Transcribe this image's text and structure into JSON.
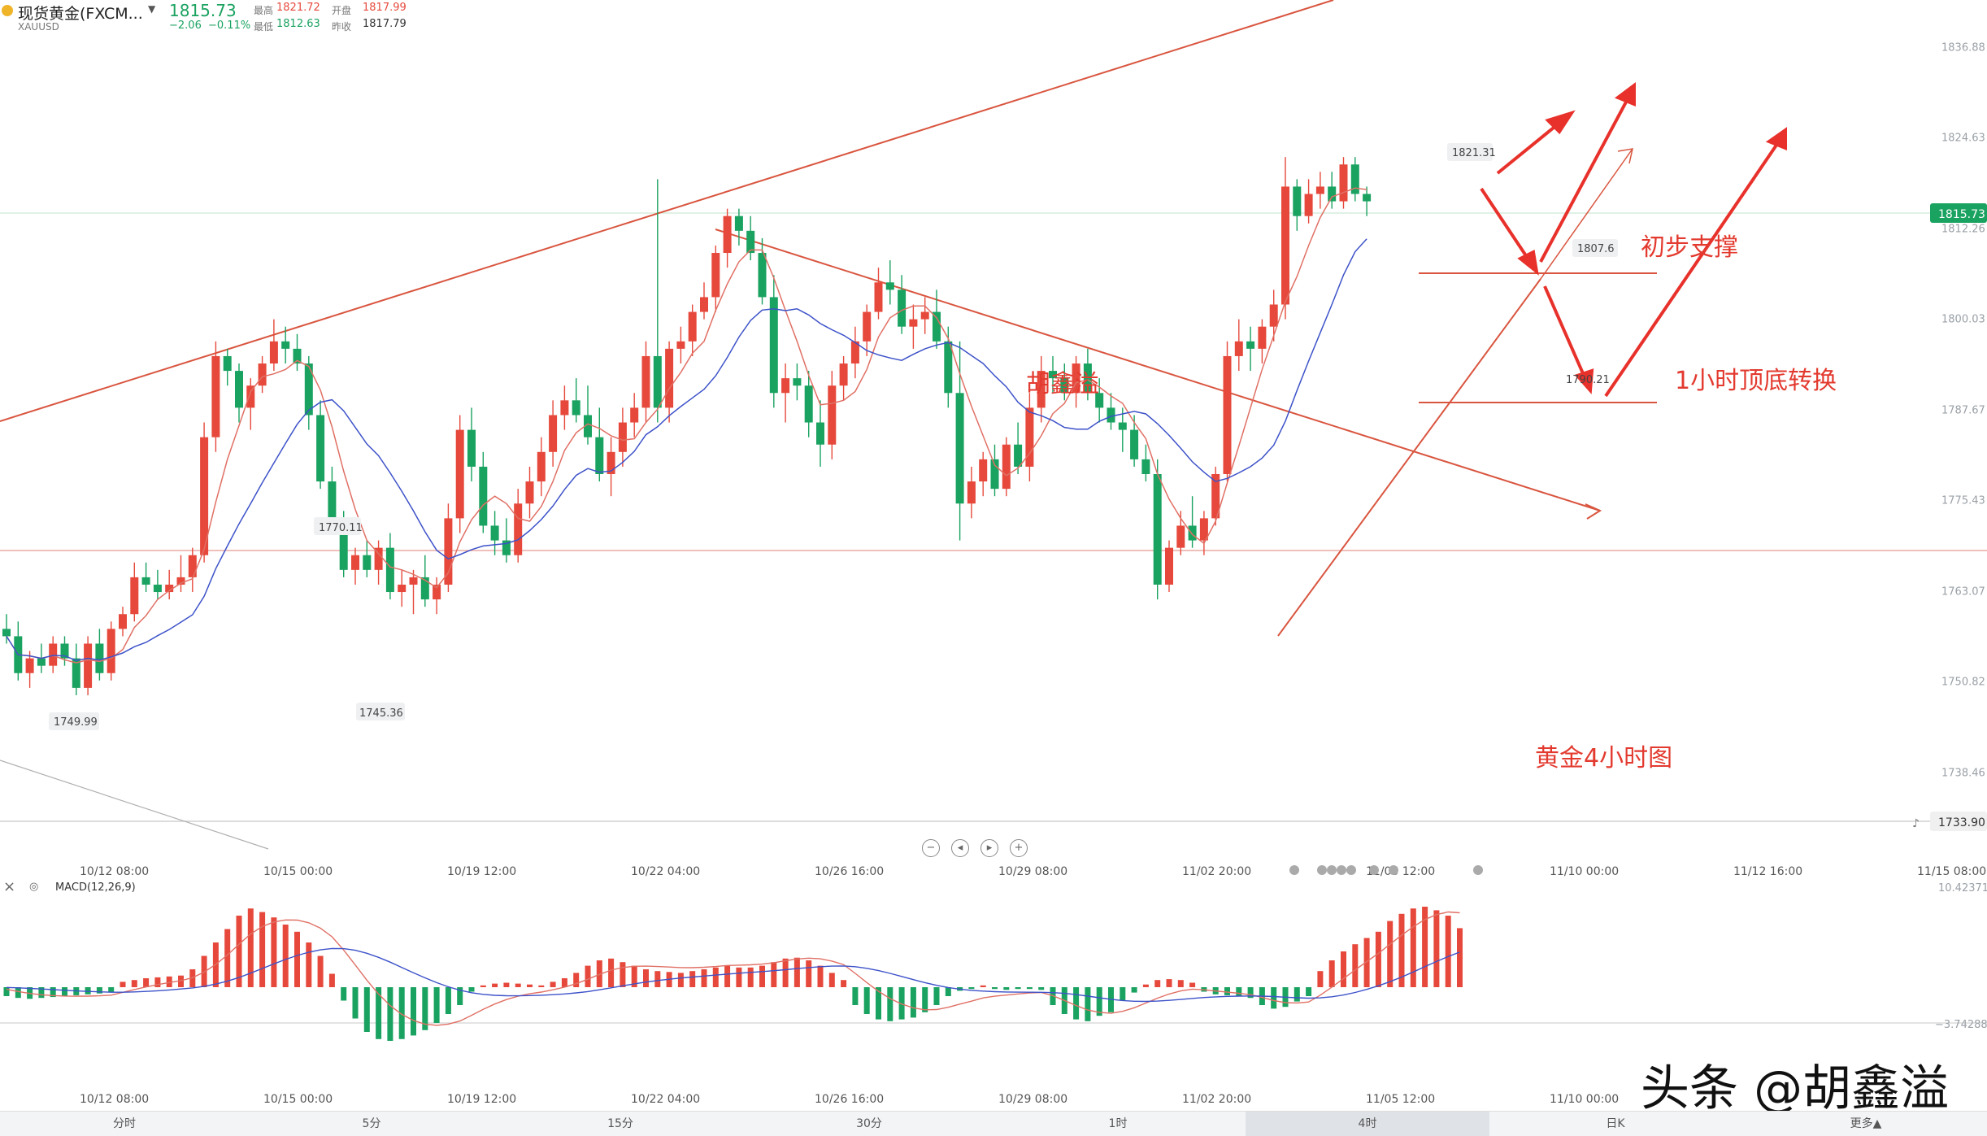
{
  "header": {
    "symbol_name": "现货黄金(FXCM...",
    "symbol_code": "XAUUSD",
    "price": "1815.73",
    "change": "−2.06",
    "change_pct": "−0.11%",
    "high_label": "最高",
    "high": "1821.72",
    "open_label": "开盘",
    "open": "1817.99",
    "low_label": "最低",
    "low": "1812.63",
    "prev_label": "昨收",
    "prev": "1817.79"
  },
  "colors": {
    "up": "#e6493c",
    "down": "#1aa260",
    "annotation": "#e33a2f",
    "ma_red": "#e07065",
    "ma_blue": "#3d52c9"
  },
  "chart_data": [
    {
      "type": "candlestick",
      "title": "黄金4小时图",
      "ylim": [
        1733,
        1840
      ],
      "y_ticks": [
        "1836.88",
        "1824.63",
        "1812.26",
        "1800.03",
        "1787.67",
        "1775.43",
        "1763.07",
        "1750.82",
        "1738.46"
      ],
      "x_ticks": [
        "10/12 08:00",
        "10/15 00:00",
        "10/19 12:00",
        "10/22 04:00",
        "10/26 16:00",
        "10/29 08:00",
        "11/02 20:00",
        "11/05 12:00",
        "11/10 00:00",
        "11/12 16:00",
        "11/15 08:00"
      ],
      "price_tags": {
        "last": "1815.73",
        "bottom": "1733.90"
      },
      "point_labels": [
        "1821.31",
        "1807.6",
        "1790.21",
        "1770.11",
        "1749.99",
        "1745.36"
      ],
      "candles": [
        [
          1758,
          1760,
          1756,
          1757
        ],
        [
          1757,
          1759,
          1751,
          1752
        ],
        [
          1752,
          1755,
          1750,
          1754
        ],
        [
          1754,
          1756,
          1752,
          1753
        ],
        [
          1753,
          1757,
          1752,
          1756
        ],
        [
          1756,
          1757,
          1753,
          1754
        ],
        [
          1754,
          1756,
          1749,
          1750
        ],
        [
          1750,
          1757,
          1749,
          1756
        ],
        [
          1756,
          1758,
          1751,
          1752
        ],
        [
          1752,
          1759,
          1751,
          1758
        ],
        [
          1758,
          1761,
          1757,
          1760
        ],
        [
          1760,
          1767,
          1759,
          1765
        ],
        [
          1765,
          1767,
          1763,
          1764
        ],
        [
          1764,
          1766,
          1762,
          1763
        ],
        [
          1763,
          1766,
          1762,
          1764
        ],
        [
          1764,
          1768,
          1763,
          1765
        ],
        [
          1765,
          1769,
          1763,
          1768
        ],
        [
          1768,
          1786,
          1767,
          1784
        ],
        [
          1784,
          1797,
          1782,
          1795
        ],
        [
          1795,
          1796,
          1791,
          1793
        ],
        [
          1793,
          1794,
          1786,
          1788
        ],
        [
          1788,
          1792,
          1785,
          1791
        ],
        [
          1791,
          1795,
          1790,
          1794
        ],
        [
          1794,
          1800,
          1793,
          1797
        ],
        [
          1797,
          1799,
          1794,
          1796
        ],
        [
          1796,
          1798,
          1793,
          1794
        ],
        [
          1794,
          1795,
          1785,
          1787
        ],
        [
          1787,
          1789,
          1777,
          1778
        ],
        [
          1778,
          1780,
          1771,
          1772
        ],
        [
          1772,
          1774,
          1765,
          1766
        ],
        [
          1766,
          1769,
          1764,
          1768
        ],
        [
          1768,
          1770,
          1765,
          1766
        ],
        [
          1766,
          1770,
          1764,
          1769
        ],
        [
          1769,
          1771,
          1762,
          1763
        ],
        [
          1763,
          1766,
          1761,
          1764
        ],
        [
          1764,
          1766,
          1760,
          1765
        ],
        [
          1765,
          1768,
          1761,
          1762
        ],
        [
          1762,
          1765,
          1760,
          1764
        ],
        [
          1764,
          1775,
          1763,
          1773
        ],
        [
          1773,
          1787,
          1771,
          1785
        ],
        [
          1785,
          1788,
          1778,
          1780
        ],
        [
          1780,
          1782,
          1771,
          1772
        ],
        [
          1772,
          1774,
          1768,
          1770
        ],
        [
          1770,
          1773,
          1767,
          1768
        ],
        [
          1768,
          1777,
          1767,
          1775
        ],
        [
          1775,
          1780,
          1773,
          1778
        ],
        [
          1778,
          1784,
          1776,
          1782
        ],
        [
          1782,
          1789,
          1780,
          1787
        ],
        [
          1787,
          1791,
          1785,
          1789
        ],
        [
          1789,
          1792,
          1786,
          1787
        ],
        [
          1787,
          1791,
          1783,
          1784
        ],
        [
          1784,
          1788,
          1778,
          1779
        ],
        [
          1779,
          1784,
          1776,
          1782
        ],
        [
          1782,
          1788,
          1780,
          1786
        ],
        [
          1786,
          1790,
          1784,
          1788
        ],
        [
          1788,
          1797,
          1786,
          1795
        ],
        [
          1795,
          1819,
          1786,
          1788
        ],
        [
          1788,
          1797,
          1786,
          1796
        ],
        [
          1796,
          1799,
          1794,
          1797
        ],
        [
          1797,
          1802,
          1795,
          1801
        ],
        [
          1801,
          1805,
          1800,
          1803
        ],
        [
          1803,
          1810,
          1801,
          1809
        ],
        [
          1809,
          1815,
          1807,
          1814
        ],
        [
          1814,
          1815,
          1810,
          1812
        ],
        [
          1812,
          1814,
          1808,
          1809
        ],
        [
          1809,
          1811,
          1802,
          1803
        ],
        [
          1803,
          1806,
          1788,
          1790
        ],
        [
          1790,
          1794,
          1786,
          1792
        ],
        [
          1792,
          1794,
          1789,
          1791
        ],
        [
          1791,
          1793,
          1784,
          1786
        ],
        [
          1786,
          1789,
          1780,
          1783
        ],
        [
          1783,
          1793,
          1781,
          1791
        ],
        [
          1791,
          1795,
          1789,
          1794
        ],
        [
          1794,
          1799,
          1792,
          1797
        ],
        [
          1797,
          1802,
          1795,
          1801
        ],
        [
          1801,
          1807,
          1800,
          1805
        ],
        [
          1805,
          1808,
          1802,
          1804
        ],
        [
          1804,
          1806,
          1798,
          1799
        ],
        [
          1799,
          1802,
          1796,
          1800
        ],
        [
          1800,
          1803,
          1798,
          1801
        ],
        [
          1801,
          1804,
          1796,
          1797
        ],
        [
          1797,
          1799,
          1788,
          1790
        ],
        [
          1790,
          1797,
          1770,
          1775
        ],
        [
          1775,
          1780,
          1773,
          1778
        ],
        [
          1778,
          1782,
          1776,
          1781
        ],
        [
          1781,
          1783,
          1776,
          1777
        ],
        [
          1777,
          1784,
          1776,
          1783
        ],
        [
          1783,
          1786,
          1779,
          1780
        ],
        [
          1780,
          1790,
          1778,
          1788
        ],
        [
          1788,
          1795,
          1786,
          1793
        ],
        [
          1793,
          1795,
          1790,
          1792
        ],
        [
          1792,
          1794,
          1789,
          1790
        ],
        [
          1790,
          1795,
          1788,
          1794
        ],
        [
          1794,
          1796,
          1789,
          1790
        ],
        [
          1790,
          1792,
          1786,
          1788
        ],
        [
          1788,
          1790,
          1785,
          1786
        ],
        [
          1786,
          1788,
          1782,
          1785
        ],
        [
          1785,
          1787,
          1780,
          1781
        ],
        [
          1781,
          1783,
          1778,
          1779
        ],
        [
          1779,
          1781,
          1762,
          1764
        ],
        [
          1764,
          1770,
          1763,
          1769
        ],
        [
          1769,
          1774,
          1768,
          1772
        ],
        [
          1772,
          1776,
          1769,
          1770
        ],
        [
          1770,
          1774,
          1768,
          1773
        ],
        [
          1773,
          1780,
          1772,
          1779
        ],
        [
          1779,
          1797,
          1778,
          1795
        ],
        [
          1795,
          1800,
          1793,
          1797
        ],
        [
          1797,
          1799,
          1793,
          1796
        ],
        [
          1796,
          1800,
          1794,
          1799
        ],
        [
          1799,
          1804,
          1797,
          1802
        ],
        [
          1802,
          1822,
          1800,
          1818
        ],
        [
          1818,
          1819,
          1812,
          1814
        ],
        [
          1814,
          1819,
          1813,
          1817
        ],
        [
          1817,
          1820,
          1815,
          1818
        ],
        [
          1818,
          1820,
          1815,
          1816
        ],
        [
          1816,
          1822,
          1815,
          1821
        ],
        [
          1821,
          1822,
          1816,
          1817
        ],
        [
          1817,
          1818,
          1814,
          1816
        ]
      ],
      "moving_averages": [
        {
          "name": "MA-red",
          "color": "#e07065",
          "period": 5
        },
        {
          "name": "MA-blue",
          "color": "#3d52c9",
          "period": 12
        }
      ]
    },
    {
      "type": "bar",
      "title": "MACD(12,26,9)",
      "y_ticks": [
        "10.42371",
        "−3.74288"
      ],
      "x_ticks": [
        "10/12 08:00",
        "10/15 00:00",
        "10/19 12:00",
        "10/22 04:00",
        "10/26 16:00",
        "10/29 08:00",
        "11/02 20:00",
        "11/05 12:00",
        "11/10 00:00"
      ],
      "histogram": [
        -1,
        -1.2,
        -1.3,
        -1.2,
        -1.1,
        -1.0,
        -0.9,
        -0.8,
        -0.7,
        -0.5,
        0.6,
        0.8,
        1.0,
        1.1,
        1.2,
        1.3,
        2.0,
        3.5,
        5.0,
        6.5,
        8.0,
        8.8,
        8.4,
        7.8,
        7.0,
        6.2,
        5.0,
        3.5,
        1.5,
        -1.5,
        -3.5,
        -5.0,
        -5.8,
        -6.0,
        -5.8,
        -5.4,
        -4.8,
        -4.0,
        -3.0,
        -2.0,
        -0.5,
        0.2,
        0.4,
        0.5,
        0.4,
        0.3,
        0.2,
        0.6,
        1.0,
        1.6,
        2.4,
        3.0,
        3.2,
        2.8,
        2.4,
        2.0,
        1.8,
        1.7,
        1.6,
        1.8,
        2.0,
        2.2,
        2.4,
        2.2,
        2.2,
        2.4,
        2.8,
        3.2,
        3.3,
        3.0,
        2.4,
        1.6,
        0.8,
        -2.0,
        -3.0,
        -3.6,
        -3.8,
        -3.6,
        -3.4,
        -2.8,
        -2.0,
        -1.0,
        -0.4,
        -0.2,
        0.2,
        -0.2,
        -0.3,
        -0.2,
        -0.2,
        -0.3,
        -2.0,
        -3.0,
        -3.6,
        -3.8,
        -3.2,
        -2.8,
        -1.5,
        -0.6,
        0.3,
        0.8,
        0.9,
        0.8,
        0.5,
        -0.5,
        -0.8,
        -0.9,
        -1.0,
        -1.2,
        -2.0,
        -2.4,
        -2.2,
        -1.6,
        -1.0,
        1.8,
        3.0,
        4.0,
        4.8,
        5.5,
        6.2,
        7.4,
        8.2,
        8.8,
        9.0,
        8.6,
        8.0,
        6.6
      ]
    }
  ],
  "annotations": {
    "support_label": "初步支撑",
    "switch_label": "1小时顶底转换",
    "author_mark": "胡鑫溢",
    "title_mark": "黄金4小时图"
  },
  "macd_label": "MACD(12,26,9)",
  "timeframes": [
    "分时",
    "5分",
    "15分",
    "30分",
    "1时",
    "4时",
    "日K",
    "更多▲"
  ],
  "active_timeframe": "4时",
  "watermark": "头条 @胡鑫溢"
}
